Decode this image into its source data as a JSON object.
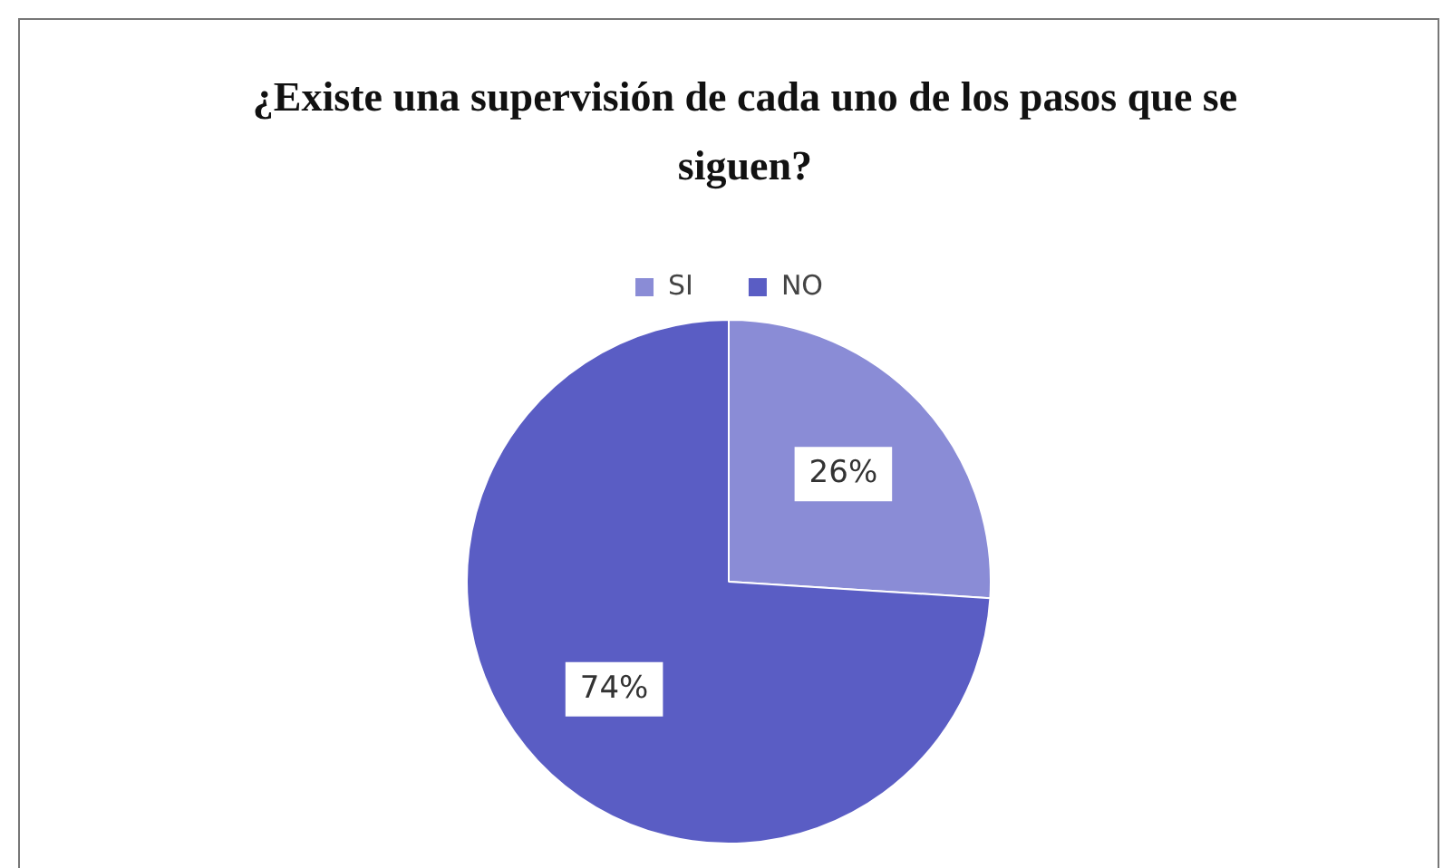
{
  "chart_data": {
    "type": "pie",
    "title": "¿Existe una supervisión de cada uno de los pasos que se siguen?",
    "categories": [
      "SI",
      "NO"
    ],
    "values": [
      26,
      74
    ],
    "colors": [
      "#8a8cd6",
      "#5a5dc4"
    ],
    "value_labels": [
      "26%",
      "74%"
    ],
    "legend": "top"
  }
}
